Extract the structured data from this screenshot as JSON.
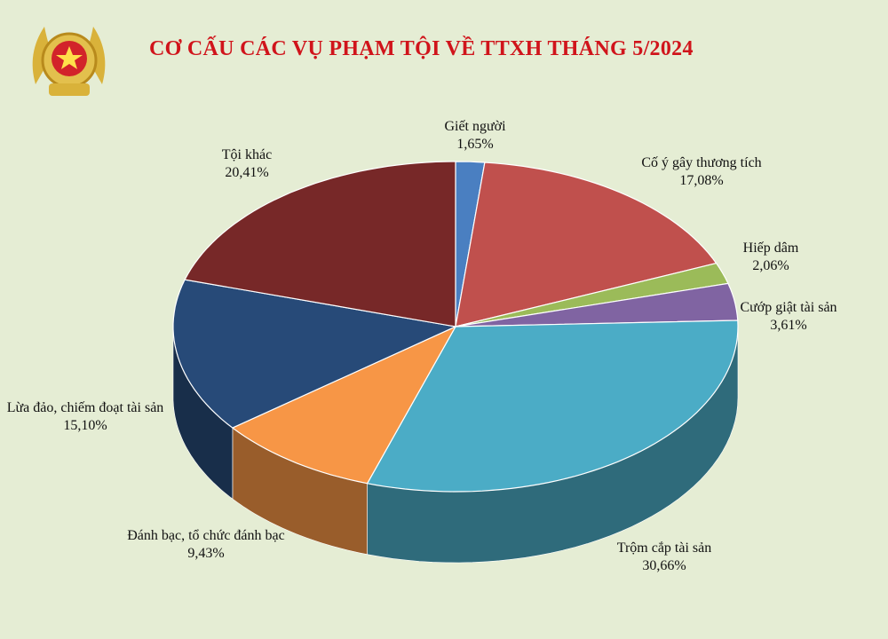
{
  "chart_data": {
    "type": "pie",
    "title": "CƠ CẤU CÁC VỤ PHẠM TỘI VỀ TTXH THÁNG 5/2024",
    "categories": [
      "Giết người",
      "Cố ý gây thương tích",
      "Hiếp dâm",
      "Cướp giật tài sản",
      "Trộm cắp tài sản",
      "Đánh bạc, tổ chức đánh bạc",
      "Lừa đảo, chiếm đoạt tài sản",
      "Tội khác"
    ],
    "values": [
      1.65,
      17.08,
      2.06,
      3.61,
      30.66,
      9.43,
      15.1,
      20.41
    ],
    "value_labels": [
      "1,65%",
      "17,08%",
      "2,06%",
      "3,61%",
      "30,66%",
      "9,43%",
      "15,10%",
      "20,41%"
    ],
    "colors": [
      "#4a7fc1",
      "#c0504d",
      "#9bbb59",
      "#8064a2",
      "#4bacc6",
      "#f79646",
      "#274a78",
      "#772828"
    ]
  }
}
